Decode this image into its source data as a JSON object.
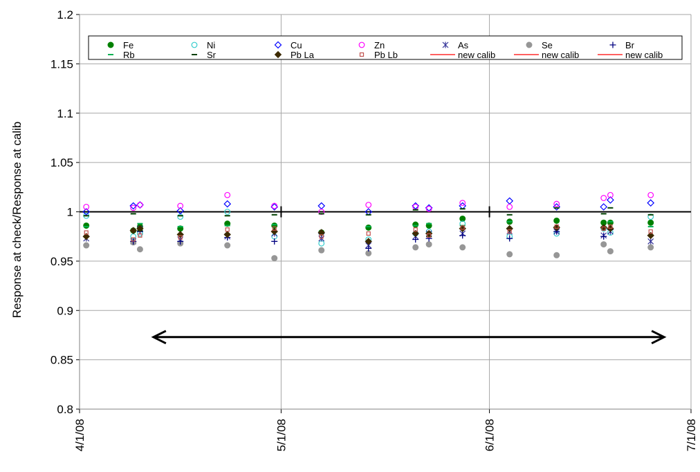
{
  "chart_data": {
    "type": "scatter",
    "ylabel": "Response at check/Response at calib",
    "xlabel": "",
    "ylim": [
      0.8,
      1.2
    ],
    "yticks": [
      0.8,
      0.85,
      0.9,
      0.95,
      1,
      1.05,
      1.1,
      1.15,
      1.2
    ],
    "ytick_labels": [
      "0.8",
      "0.85",
      "0.9",
      "0.95",
      "1",
      "1.05",
      "1.1",
      "1.15",
      "1.2"
    ],
    "xlim": [
      "2008-04-01",
      "2008-07-01"
    ],
    "xticks": [
      "2008-04-01",
      "2008-05-01",
      "2008-06-01",
      "2008-07-01"
    ],
    "xtick_labels": [
      "4/1/08",
      "5/1/08",
      "6/1/08",
      "7/1/08"
    ],
    "grid": true,
    "legend_placement": "top",
    "reference_line": {
      "y": 1.0,
      "color": "#000000"
    },
    "calibration_marks": [
      "2008-05-01",
      "2008-06-01"
    ],
    "double_arrow": {
      "x": [
        "2008-04-12",
        "2008-06-27"
      ],
      "y": 0.873
    },
    "dates": [
      "2008-04-02",
      "2008-04-09",
      "2008-04-10",
      "2008-04-16",
      "2008-04-23",
      "2008-04-30",
      "2008-05-07",
      "2008-05-14",
      "2008-05-21",
      "2008-05-23",
      "2008-05-28",
      "2008-06-04",
      "2008-06-11",
      "2008-06-18",
      "2008-06-19",
      "2008-06-25"
    ],
    "series": [
      {
        "name": "Fe",
        "color": "#008000",
        "marker": "circle-filled",
        "values": [
          0.986,
          0.981,
          0.985,
          0.983,
          0.988,
          0.986,
          0.979,
          0.984,
          0.987,
          0.986,
          0.993,
          0.99,
          0.991,
          0.989,
          0.989,
          0.989
        ]
      },
      {
        "name": "Ni",
        "color": "#33cccc",
        "marker": "circle-open",
        "values": [
          0.996,
          0.975,
          0.978,
          0.995,
          1.0,
          0.975,
          0.968,
          0.972,
          0.978,
          0.98,
          0.988,
          0.975,
          0.978,
          0.983,
          0.979,
          0.995
        ]
      },
      {
        "name": "Cu",
        "color": "#0000ff",
        "marker": "diamond-open",
        "values": [
          1.0,
          1.006,
          1.007,
          1.001,
          1.008,
          1.005,
          1.006,
          1.0,
          1.006,
          1.004,
          1.006,
          1.011,
          1.005,
          1.005,
          1.012,
          1.009
        ]
      },
      {
        "name": "Zn",
        "color": "#ff00ff",
        "marker": "circle-open",
        "values": [
          1.005,
          1.004,
          1.007,
          1.006,
          1.017,
          1.006,
          1.0,
          1.007,
          1.005,
          1.003,
          1.009,
          1.005,
          1.008,
          1.014,
          1.017,
          1.017
        ]
      },
      {
        "name": "As",
        "color": "#333399",
        "marker": "asterisk",
        "values": [
          0.973,
          0.97,
          0.983,
          0.972,
          0.975,
          0.978,
          0.973,
          0.966,
          0.975,
          0.978,
          0.978,
          0.98,
          0.98,
          0.976,
          0.98,
          0.97
        ]
      },
      {
        "name": "Se",
        "color": "#969696",
        "marker": "circle-filled",
        "values": [
          0.966,
          0.969,
          0.962,
          0.968,
          0.966,
          0.953,
          0.961,
          0.958,
          0.964,
          0.967,
          0.964,
          0.957,
          0.956,
          0.967,
          0.96,
          0.964
        ]
      },
      {
        "name": "Br",
        "color": "#000080",
        "marker": "plus",
        "values": [
          0.975,
          0.97,
          0.98,
          0.97,
          0.974,
          0.97,
          0.978,
          0.963,
          0.972,
          0.973,
          0.976,
          0.973,
          0.98,
          0.975,
          0.982,
          0.976
        ]
      },
      {
        "name": "Rb",
        "color": "#00b050",
        "marker": "dash",
        "values": [
          0.985,
          0.981,
          0.988,
          0.985,
          0.986,
          0.987,
          0.98,
          0.985,
          0.986,
          0.988,
          0.986,
          0.99,
          0.985,
          0.985,
          0.99,
          0.985
        ]
      },
      {
        "name": "Sr",
        "color": "#004000",
        "marker": "dash",
        "values": [
          0.996,
          0.998,
          0.981,
          0.996,
          0.996,
          0.997,
          0.998,
          0.997,
          1.002,
          0.975,
          1.003,
          0.997,
          1.004,
          0.998,
          1.004,
          0.997
        ]
      },
      {
        "name": "Pb La",
        "color": "#3d2b00",
        "marker": "diamond-filled",
        "values": [
          0.975,
          0.981,
          0.983,
          0.977,
          0.977,
          0.98,
          0.979,
          0.97,
          0.978,
          0.978,
          0.983,
          0.983,
          0.984,
          0.984,
          0.983,
          0.976
        ]
      },
      {
        "name": "Pb Lb",
        "color": "#c0504d",
        "marker": "square-open",
        "values": [
          0.979,
          0.972,
          0.976,
          0.974,
          0.982,
          0.983,
          0.975,
          0.978,
          0.982,
          0.976,
          0.984,
          0.98,
          0.985,
          0.983,
          0.985,
          0.98
        ]
      },
      {
        "name": "new calib",
        "color": "#ff0000",
        "marker": "line",
        "values": []
      },
      {
        "name": "new calib",
        "color": "#ff0000",
        "marker": "line",
        "values": []
      },
      {
        "name": "new calib",
        "color": "#ff0000",
        "marker": "line",
        "values": []
      }
    ]
  }
}
